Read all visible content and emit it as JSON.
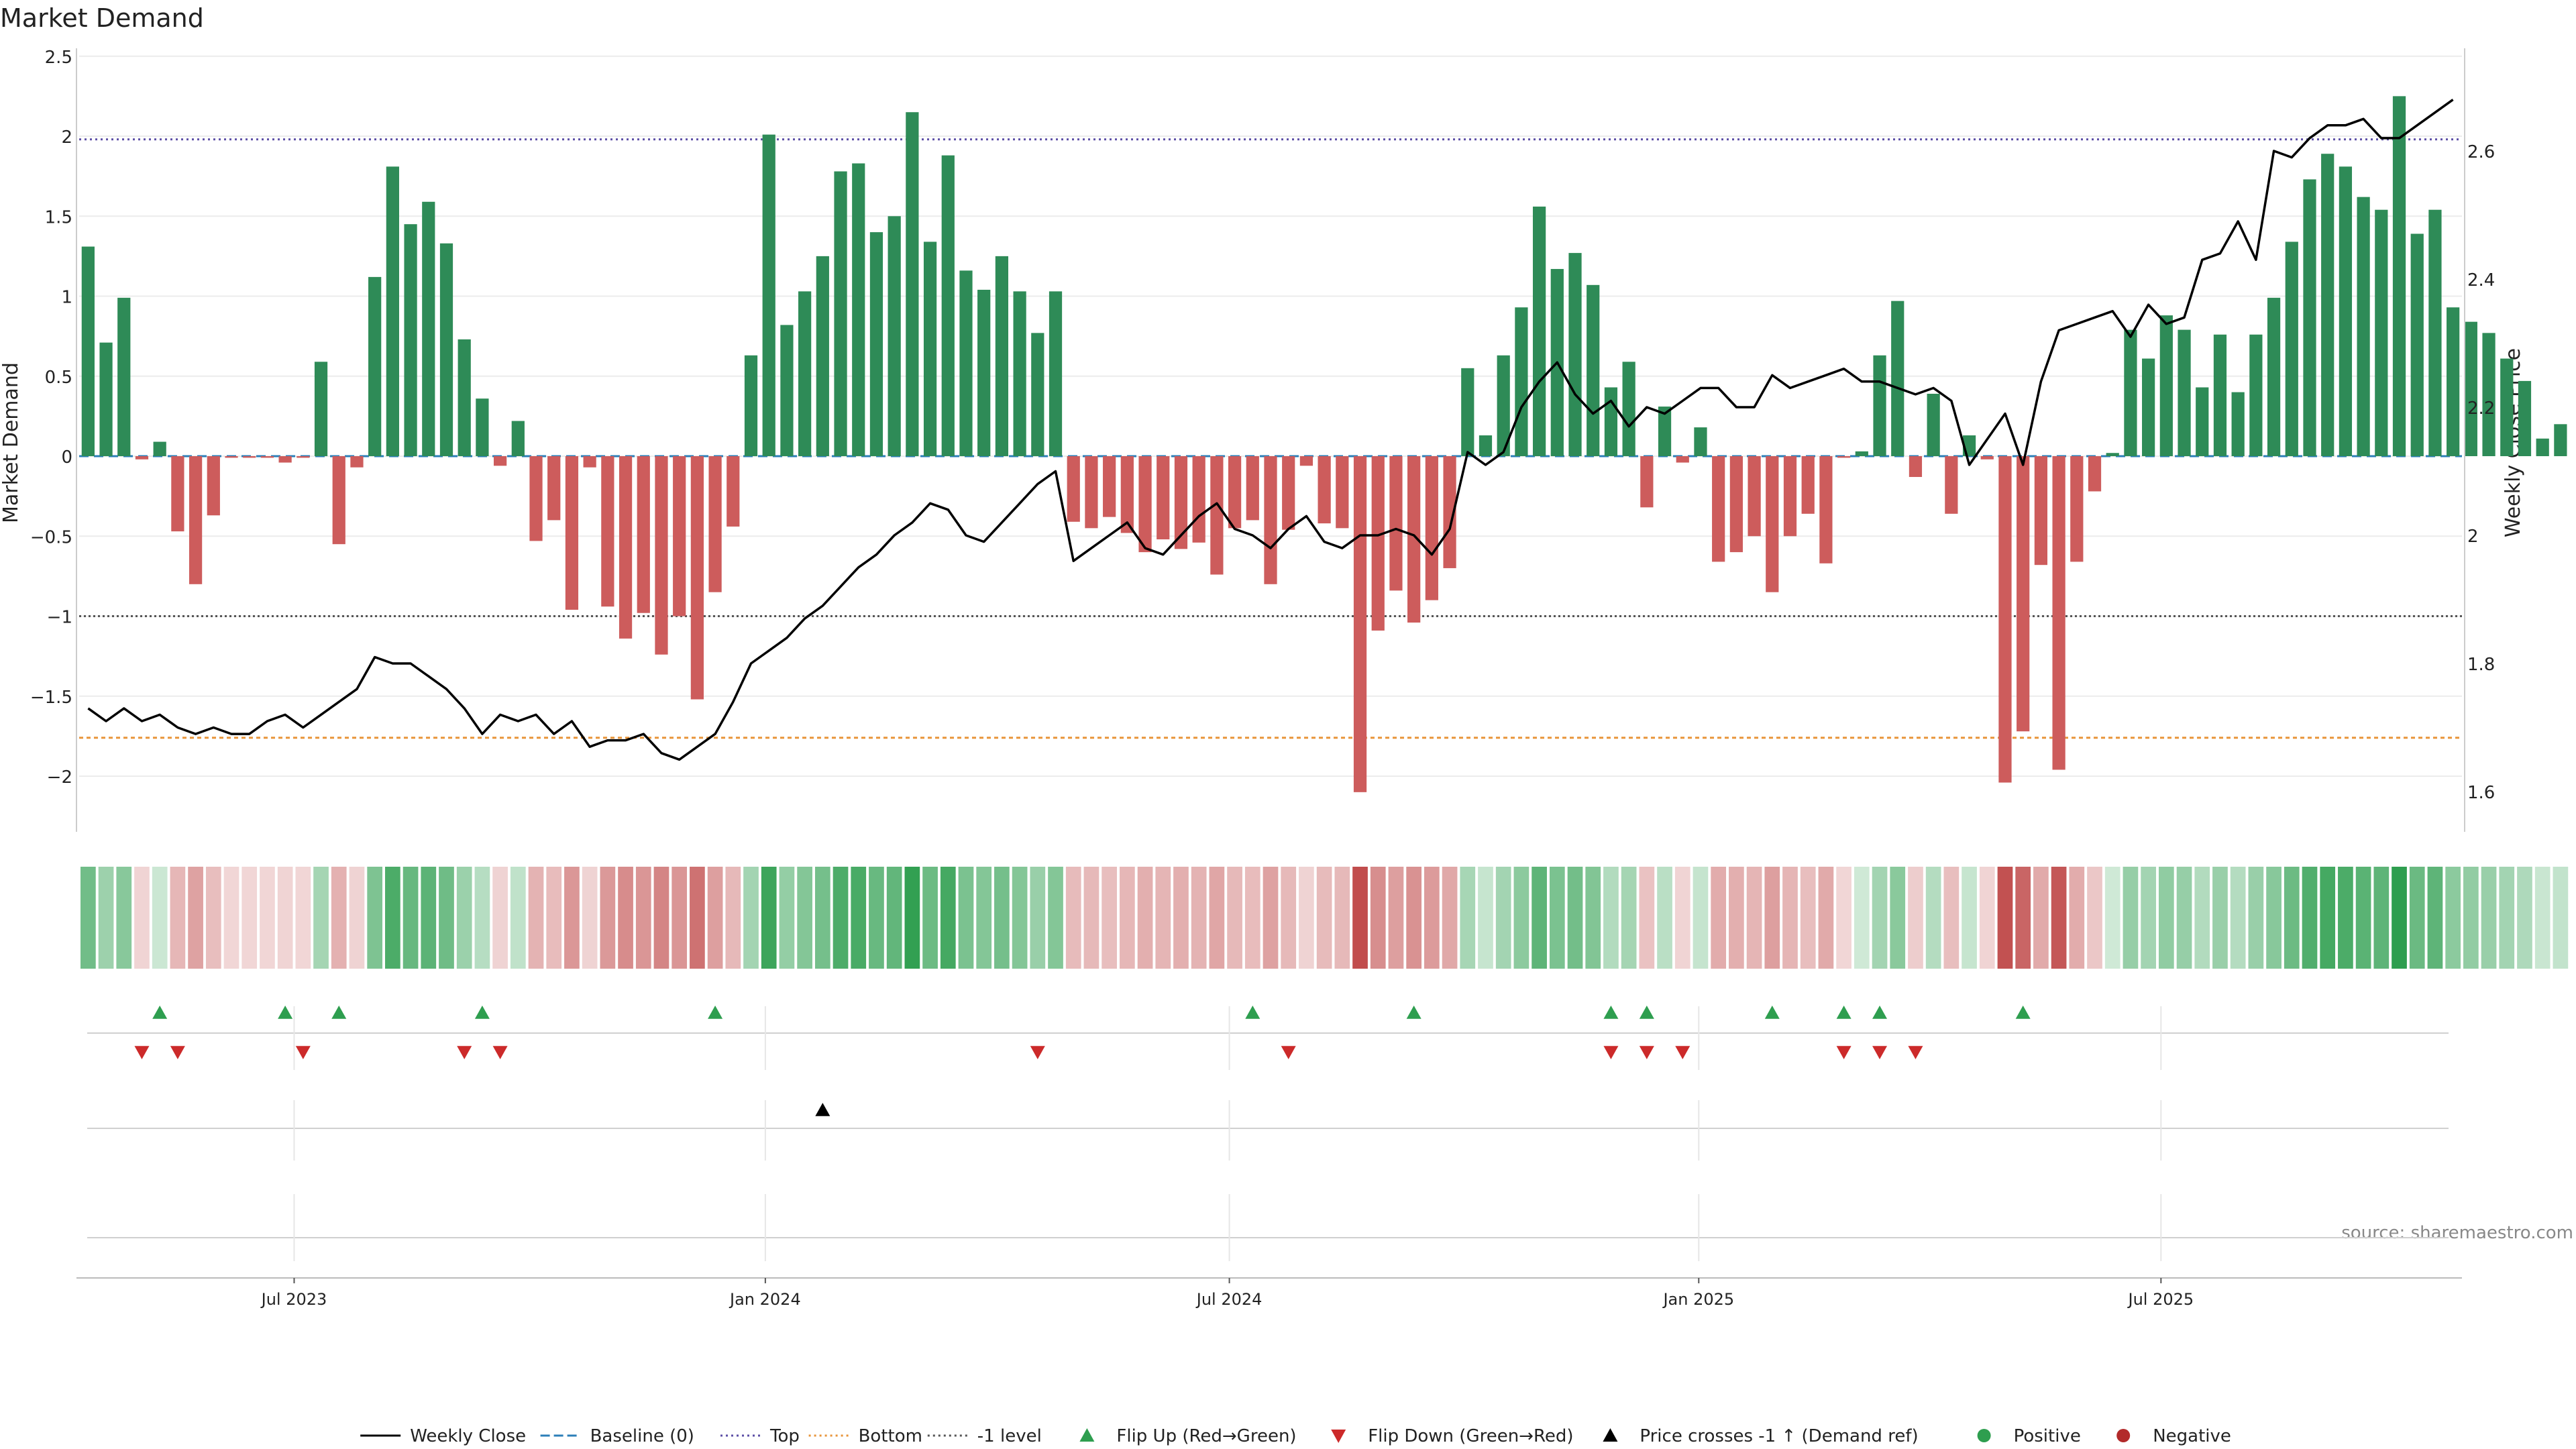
{
  "chart_data": {
    "type": "bar",
    "title": "Market Demand",
    "ylabel": "Market Demand",
    "y2label": "Weekly Close Price",
    "ylim": [
      -2.3,
      2.5
    ],
    "y2lim": [
      1.555,
      2.8
    ],
    "yticks": [
      "2.5",
      "2",
      "1.5",
      "1",
      "0.5",
      "0",
      "−0.5",
      "−1",
      "−1.5",
      "−2"
    ],
    "yticks_values": [
      2.5,
      2,
      1.5,
      1,
      0.5,
      0,
      -0.5,
      -1,
      -1.5,
      -2
    ],
    "y2ticks": [
      "2.6",
      "2.4",
      "2.2",
      "2",
      "1.8",
      "1.6"
    ],
    "y2ticks_values": [
      2.6,
      2.4,
      2.2,
      2.0,
      1.8,
      1.6
    ],
    "x_range_weeks": [
      0,
      133
    ],
    "xticks": [
      {
        "label": "Jul 2023",
        "week": 12
      },
      {
        "label": "Jan 2024",
        "week": 38.3
      },
      {
        "label": "Jul 2024",
        "week": 64.2
      },
      {
        "label": "Jan 2025",
        "week": 90.4
      },
      {
        "label": "Jul 2025",
        "week": 116.2
      }
    ],
    "reference_lines": {
      "top": 1.98,
      "bottom": -1.76,
      "minus1_level": -1,
      "baseline": 0
    },
    "demand": [
      1.31,
      0.71,
      0.99,
      -0.02,
      0.09,
      -0.47,
      -0.8,
      -0.37,
      -0.01,
      -0.01,
      -0.01,
      -0.04,
      -0.01,
      0.59,
      -0.55,
      -0.07,
      1.12,
      1.81,
      1.45,
      1.59,
      1.33,
      0.73,
      0.36,
      -0.06,
      0.22,
      -0.53,
      -0.4,
      -0.96,
      -0.07,
      -0.94,
      -1.14,
      -0.98,
      -1.24,
      -1.0,
      -1.52,
      -0.85,
      -0.44,
      0.63,
      2.01,
      0.82,
      1.03,
      1.25,
      1.78,
      1.83,
      1.4,
      1.5,
      2.15,
      1.34,
      1.88,
      1.16,
      1.04,
      1.25,
      1.03,
      0.77,
      1.03,
      -0.41,
      -0.45,
      -0.38,
      -0.48,
      -0.6,
      -0.52,
      -0.58,
      -0.54,
      -0.74,
      -0.45,
      -0.4,
      -0.8,
      -0.46,
      -0.06,
      -0.42,
      -0.45,
      -2.1,
      -1.09,
      -0.84,
      -1.04,
      -0.9,
      -0.7,
      0.55,
      0.13,
      0.63,
      0.93,
      1.56,
      1.17,
      1.27,
      1.07,
      0.43,
      0.59,
      -0.32,
      0.31,
      -0.04,
      0.18,
      -0.66,
      -0.6,
      -0.5,
      -0.85,
      -0.5,
      -0.36,
      -0.67,
      -0.01,
      0.03,
      0.63,
      0.97,
      -0.13,
      0.39,
      -0.36,
      0.13,
      -0.02,
      -2.04,
      -1.72,
      -0.68,
      -1.96,
      -0.66,
      -0.22,
      0.02,
      0.79,
      0.61,
      0.88,
      0.79,
      0.43,
      0.76,
      0.4,
      0.76,
      0.99,
      1.34,
      1.73,
      1.89,
      1.81,
      1.62,
      1.54,
      2.25,
      1.39,
      1.54,
      0.93,
      0.84,
      0.77,
      0.61,
      0.47,
      0.11,
      0.2
    ],
    "close": [
      [
        0.5,
        1.73
      ],
      [
        1.5,
        1.71
      ],
      [
        2.5,
        1.73
      ],
      [
        3.5,
        1.71
      ],
      [
        4.5,
        1.72
      ],
      [
        5.5,
        1.7
      ],
      [
        6.5,
        1.69
      ],
      [
        7.5,
        1.7
      ],
      [
        8.5,
        1.69
      ],
      [
        9.5,
        1.69
      ],
      [
        10.5,
        1.71
      ],
      [
        11.5,
        1.72
      ],
      [
        12.5,
        1.7
      ],
      [
        13.5,
        1.72
      ],
      [
        14.5,
        1.74
      ],
      [
        15.5,
        1.76
      ],
      [
        16.5,
        1.81
      ],
      [
        17.5,
        1.8
      ],
      [
        18.5,
        1.8
      ],
      [
        19.5,
        1.78
      ],
      [
        20.5,
        1.76
      ],
      [
        21.5,
        1.73
      ],
      [
        22.5,
        1.69
      ],
      [
        23.5,
        1.72
      ],
      [
        24.5,
        1.71
      ],
      [
        25.5,
        1.72
      ],
      [
        26.5,
        1.69
      ],
      [
        27.5,
        1.71
      ],
      [
        28.5,
        1.67
      ],
      [
        29.5,
        1.68
      ],
      [
        30.5,
        1.68
      ],
      [
        31.5,
        1.69
      ],
      [
        32.5,
        1.66
      ],
      [
        33.5,
        1.65
      ],
      [
        34.5,
        1.67
      ],
      [
        35.5,
        1.69
      ],
      [
        36.5,
        1.74
      ],
      [
        37.5,
        1.8
      ],
      [
        38.5,
        1.82
      ],
      [
        39.5,
        1.84
      ],
      [
        40.5,
        1.87
      ],
      [
        41.5,
        1.89
      ],
      [
        42.5,
        1.92
      ],
      [
        43.5,
        1.95
      ],
      [
        44.5,
        1.97
      ],
      [
        45.5,
        2.0
      ],
      [
        46.5,
        2.02
      ],
      [
        47.5,
        2.05
      ],
      [
        48.5,
        2.04
      ],
      [
        49.5,
        2.0
      ],
      [
        50.5,
        1.99
      ],
      [
        51.5,
        2.02
      ],
      [
        52.5,
        2.05
      ],
      [
        53.5,
        2.08
      ],
      [
        54.5,
        2.1
      ],
      [
        55.5,
        1.96
      ],
      [
        56.5,
        1.98
      ],
      [
        57.5,
        2.0
      ],
      [
        58.5,
        2.02
      ],
      [
        59.5,
        1.98
      ],
      [
        60.5,
        1.97
      ],
      [
        61.5,
        2.0
      ],
      [
        62.5,
        2.03
      ],
      [
        63.5,
        2.05
      ],
      [
        64.5,
        2.01
      ],
      [
        65.5,
        2.0
      ],
      [
        66.5,
        1.98
      ],
      [
        67.5,
        2.01
      ],
      [
        68.5,
        2.03
      ],
      [
        69.5,
        1.99
      ],
      [
        70.5,
        1.98
      ],
      [
        71.5,
        2.0
      ],
      [
        72.5,
        2.0
      ],
      [
        73.5,
        2.01
      ],
      [
        74.5,
        2.0
      ],
      [
        75.5,
        1.97
      ],
      [
        76.5,
        2.01
      ],
      [
        77.5,
        2.13
      ],
      [
        78.5,
        2.11
      ],
      [
        79.5,
        2.13
      ],
      [
        80.5,
        2.2
      ],
      [
        81.5,
        2.24
      ],
      [
        82.5,
        2.27
      ],
      [
        83.5,
        2.22
      ],
      [
        84.5,
        2.19
      ],
      [
        85.5,
        2.21
      ],
      [
        86.5,
        2.17
      ],
      [
        87.5,
        2.2
      ],
      [
        88.5,
        2.19
      ],
      [
        89.5,
        2.21
      ],
      [
        90.5,
        2.23
      ],
      [
        91.5,
        2.23
      ],
      [
        92.5,
        2.2
      ],
      [
        93.5,
        2.2
      ],
      [
        94.5,
        2.25
      ],
      [
        95.5,
        2.23
      ],
      [
        96.5,
        2.24
      ],
      [
        97.5,
        2.25
      ],
      [
        98.5,
        2.26
      ],
      [
        99.5,
        2.24
      ],
      [
        100.5,
        2.24
      ],
      [
        101.5,
        2.23
      ],
      [
        102.5,
        2.22
      ],
      [
        103.5,
        2.23
      ],
      [
        104.5,
        2.21
      ],
      [
        105.5,
        2.11
      ],
      [
        106.5,
        2.15
      ],
      [
        107.5,
        2.19
      ],
      [
        108.5,
        2.11
      ],
      [
        109.5,
        2.24
      ],
      [
        110.5,
        2.32
      ],
      [
        111.5,
        2.33
      ],
      [
        112.5,
        2.34
      ],
      [
        113.5,
        2.35
      ],
      [
        114.5,
        2.31
      ],
      [
        115.5,
        2.36
      ],
      [
        116.5,
        2.33
      ],
      [
        117.5,
        2.34
      ],
      [
        118.5,
        2.43
      ],
      [
        119.5,
        2.44
      ],
      [
        120.5,
        2.49
      ],
      [
        121.5,
        2.43
      ],
      [
        122.5,
        2.6
      ],
      [
        123.5,
        2.59
      ],
      [
        124.5,
        2.62
      ],
      [
        125.5,
        2.64
      ],
      [
        126.5,
        2.64
      ],
      [
        127.5,
        2.65
      ],
      [
        128.5,
        2.62
      ],
      [
        129.5,
        2.62
      ],
      [
        130.5,
        2.64
      ],
      [
        131.5,
        2.66
      ],
      [
        132.5,
        2.68
      ]
    ],
    "flip_up_weeks": [
      4.5,
      11.5,
      14.5,
      22.5,
      35.5,
      65.5,
      74.5,
      85.5,
      87.5,
      94.5,
      98.5,
      100.5,
      108.5
    ],
    "flip_down_weeks": [
      3.5,
      5.5,
      12.5,
      21.5,
      23.5,
      53.5,
      67.5,
      85.5,
      87.5,
      89.5,
      98.5,
      100.5,
      102.5
    ],
    "price_cross_weeks": [
      41.5
    ],
    "source": "source: sharemaestro.com",
    "legend": [
      {
        "label": "Weekly Close",
        "kind": "solid-line",
        "color": "#000000"
      },
      {
        "label": "Baseline (0)",
        "kind": "dashed-line",
        "color": "#2c7fb8"
      },
      {
        "label": "Top",
        "kind": "dotted-line",
        "color": "#5c4fa6"
      },
      {
        "label": "Bottom",
        "kind": "dotted-line",
        "color": "#e8953a"
      },
      {
        "label": "-1 level",
        "kind": "dotted-line",
        "color": "#555555"
      },
      {
        "label": "Flip Up (Red→Green)",
        "kind": "triangle-up",
        "color": "#2e9e4f"
      },
      {
        "label": "Flip Down (Green→Red)",
        "kind": "triangle-down",
        "color": "#cc2a2a"
      },
      {
        "label": "Price crosses -1 ↑ (Demand ref)",
        "kind": "triangle-up",
        "color": "#000000"
      },
      {
        "label": "Positive",
        "kind": "dot",
        "color": "#2e9e4f"
      },
      {
        "label": "Negative",
        "kind": "dot",
        "color": "#b22a2a"
      }
    ],
    "colors": {
      "positive": "#2e8b57",
      "negative": "#cd5c5c",
      "close": "#000000"
    }
  }
}
